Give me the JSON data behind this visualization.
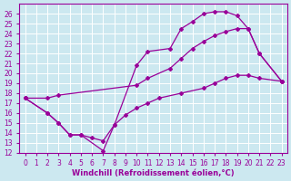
{
  "background_color": "#cce8f0",
  "line_color": "#990099",
  "grid_color": "#ffffff",
  "xlabel": "Windchill (Refroidissement éolien,°C)",
  "xlabel_fontsize": 6.0,
  "tick_fontsize": 5.5,
  "series1_x": [
    0,
    2,
    3,
    4,
    5,
    7,
    8,
    10,
    11,
    13,
    14,
    15,
    16,
    17,
    18,
    19,
    20,
    21,
    23
  ],
  "series1_y": [
    17.5,
    16.0,
    15.0,
    13.8,
    13.8,
    12.2,
    14.8,
    20.8,
    22.2,
    22.5,
    24.5,
    25.2,
    26.0,
    26.2,
    26.2,
    25.8,
    24.5,
    22.0,
    19.2
  ],
  "series2_x": [
    0,
    2,
    3,
    10,
    11,
    13,
    14,
    15,
    16,
    17,
    18,
    19,
    20,
    21,
    23
  ],
  "series2_y": [
    17.5,
    17.5,
    17.8,
    18.8,
    19.5,
    20.5,
    21.5,
    22.5,
    23.2,
    23.8,
    24.2,
    24.5,
    24.5,
    22.0,
    19.2
  ],
  "series3_x": [
    0,
    2,
    3,
    4,
    5,
    6,
    7,
    8,
    9,
    10,
    11,
    12,
    14,
    16,
    17,
    18,
    19,
    20,
    21,
    23
  ],
  "series3_y": [
    17.5,
    16.0,
    15.0,
    13.8,
    13.8,
    13.5,
    13.2,
    14.8,
    15.8,
    16.5,
    17.0,
    17.5,
    18.0,
    18.5,
    19.0,
    19.5,
    19.8,
    19.8,
    19.5,
    19.2
  ],
  "xlim": [
    -0.5,
    23.5
  ],
  "ylim": [
    12,
    27
  ],
  "xticks": [
    0,
    1,
    2,
    3,
    4,
    5,
    6,
    7,
    8,
    9,
    10,
    11,
    12,
    13,
    14,
    15,
    16,
    17,
    18,
    19,
    20,
    21,
    22,
    23
  ],
  "yticks": [
    12,
    13,
    14,
    15,
    16,
    17,
    18,
    19,
    20,
    21,
    22,
    23,
    24,
    25,
    26
  ],
  "line_width": 0.9,
  "marker": "D",
  "marker_size": 2.0
}
